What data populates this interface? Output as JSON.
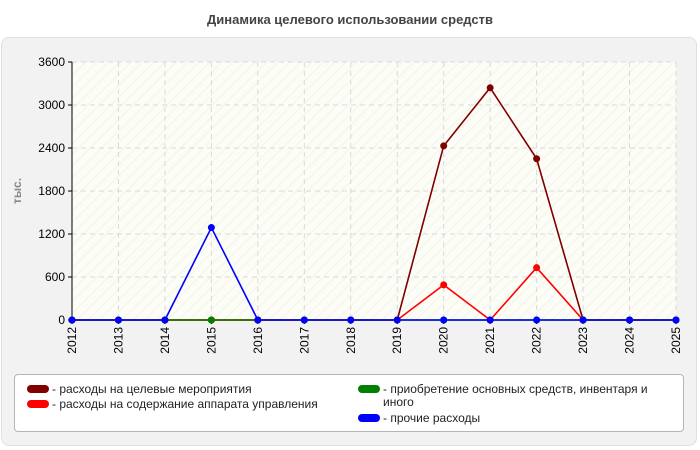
{
  "chart_data": {
    "type": "line",
    "title": "Динамика целевого использовании средств",
    "ylabel": "тыс.",
    "xlabel": "",
    "categories": [
      "2012",
      "2013",
      "2014",
      "2015",
      "2016",
      "2017",
      "2018",
      "2019",
      "2020",
      "2021",
      "2022",
      "2023",
      "2024",
      "2025"
    ],
    "ylim": [
      0,
      3600
    ],
    "yticks": [
      0,
      600,
      1200,
      1800,
      2400,
      3000,
      3600
    ],
    "grid": true,
    "legend_position": "bottom",
    "series": [
      {
        "name": "- расходы на целевые мероприятия",
        "color": "#800000",
        "values": [
          0,
          0,
          0,
          0,
          0,
          0,
          0,
          0,
          2430,
          3240,
          2250,
          0,
          0,
          0
        ]
      },
      {
        "name": "- расходы на содержание аппарата управления",
        "color": "#ff0000",
        "values": [
          0,
          0,
          0,
          0,
          0,
          0,
          0,
          0,
          490,
          0,
          730,
          0,
          0,
          0
        ]
      },
      {
        "name": "- приобретение основных средств, инвентаря и иного",
        "color": "#008000",
        "values": [
          0,
          0,
          0,
          0,
          0,
          0,
          0,
          0,
          0,
          0,
          0,
          0,
          0,
          0
        ]
      },
      {
        "name": "- прочие расходы",
        "color": "#0000ff",
        "values": [
          0,
          0,
          0,
          1290,
          0,
          0,
          0,
          0,
          0,
          0,
          0,
          0,
          0,
          0
        ]
      }
    ]
  }
}
